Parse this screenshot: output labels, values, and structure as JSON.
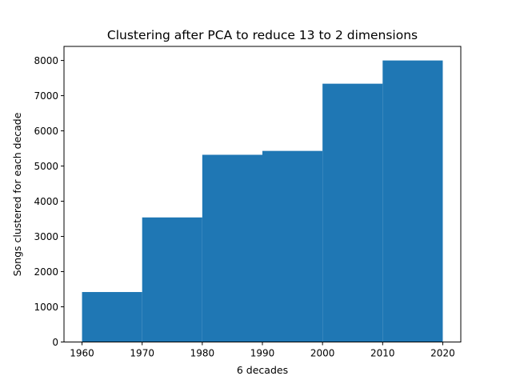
{
  "chart_data": {
    "type": "bar",
    "title": "Clustering after PCA to reduce 13 to 2 dimensions",
    "xlabel": "6 decades",
    "ylabel": "Songs clustered for each decade",
    "bins": [
      {
        "start": 1960,
        "end": 1970,
        "value": 1420
      },
      {
        "start": 1970,
        "end": 1980,
        "value": 3540
      },
      {
        "start": 1980,
        "end": 1990,
        "value": 5320
      },
      {
        "start": 1990,
        "end": 2000,
        "value": 5430
      },
      {
        "start": 2000,
        "end": 2010,
        "value": 7340
      },
      {
        "start": 2010,
        "end": 2020,
        "value": 8000
      }
    ],
    "xticks": [
      "1960",
      "1970",
      "1980",
      "1990",
      "2000",
      "2010",
      "2020"
    ],
    "yticks": [
      "0",
      "1000",
      "2000",
      "3000",
      "4000",
      "5000",
      "6000",
      "7000",
      "8000"
    ],
    "xlim": [
      1957,
      2023
    ],
    "ylim": [
      0,
      8400
    ],
    "grid": false,
    "bar_color": "#1f77b4"
  }
}
